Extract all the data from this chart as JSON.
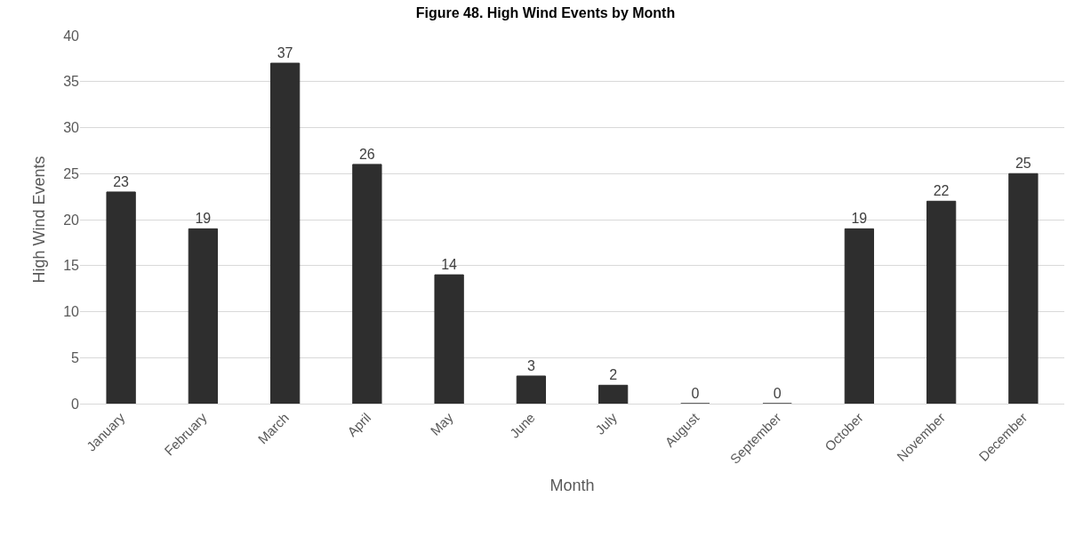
{
  "chart_data": {
    "type": "bar",
    "title": "Figure 48. High Wind Events by Month",
    "xlabel": "Month",
    "ylabel": "High Wind Events",
    "categories": [
      "January",
      "February",
      "March",
      "April",
      "May",
      "June",
      "July",
      "August",
      "September",
      "October",
      "November",
      "December"
    ],
    "values": [
      23,
      19,
      37,
      26,
      14,
      3,
      2,
      0,
      0,
      19,
      22,
      25
    ],
    "color": "#2e2e2e",
    "ylim": [
      0,
      40
    ],
    "yticks": [
      0,
      5,
      10,
      15,
      20,
      25,
      30,
      35,
      40
    ],
    "grid": "y",
    "data_labels": true
  }
}
